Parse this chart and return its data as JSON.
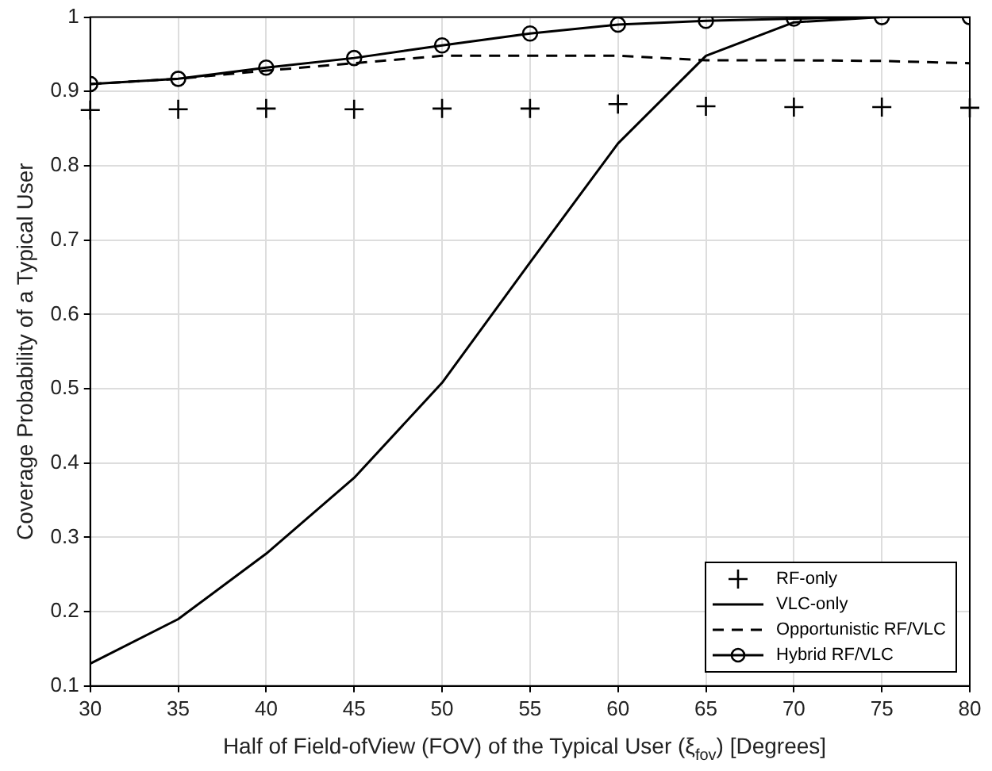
{
  "chart_data": {
    "type": "line",
    "xlabel": "Half of Field-ofView (FOV) of the Typical User (ξ$_{fov}$) [Degrees]",
    "ylabel": "Coverage Probability of a Typical User",
    "x": [
      30,
      35,
      40,
      45,
      50,
      55,
      60,
      65,
      70,
      75,
      80
    ],
    "xlim": [
      30,
      80
    ],
    "xticks": [
      30,
      35,
      40,
      45,
      50,
      55,
      60,
      65,
      70,
      75,
      80
    ],
    "ylim": [
      0.1,
      1
    ],
    "yticks": [
      0.1,
      0.2,
      0.3,
      0.4,
      0.5,
      0.6,
      0.7,
      0.8,
      0.9,
      1
    ],
    "grid": true,
    "legend": "bottom right",
    "series": [
      {
        "name": "RF-only",
        "type": "scatter",
        "marker": "cross",
        "color": "#000000",
        "values": [
          0.875,
          0.876,
          0.877,
          0.876,
          0.877,
          0.877,
          0.883,
          0.88,
          0.879,
          0.879,
          0.878
        ]
      },
      {
        "name": "VLC-only",
        "marker": "none",
        "line_style": "solid",
        "color": "#000000",
        "values": [
          0.13,
          0.19,
          0.278,
          0.38,
          0.508,
          0.67,
          0.83,
          0.948,
          0.993,
          1.0,
          1.0
        ]
      },
      {
        "name": "Opportunistic RF/VLC",
        "marker": "none",
        "line_style": "dashed",
        "color": "#000000",
        "values": [
          0.91,
          0.917,
          0.928,
          0.938,
          0.948,
          0.948,
          0.948,
          0.942,
          0.942,
          0.941,
          0.938
        ]
      },
      {
        "name": "Hybrid RF/VLC",
        "marker": "circle",
        "line_style": "solid",
        "color": "#000000",
        "values": [
          0.91,
          0.917,
          0.932,
          0.945,
          0.962,
          0.978,
          0.99,
          0.995,
          0.998,
          1.0,
          1.0
        ]
      }
    ]
  }
}
